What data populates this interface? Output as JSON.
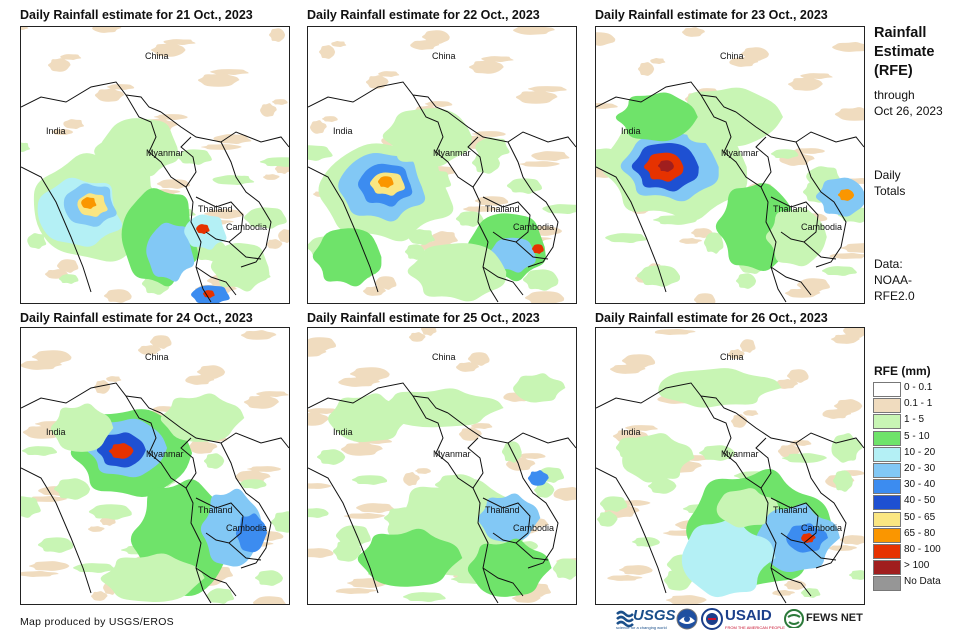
{
  "panels": [
    {
      "title": "Daily Rainfall estimate for 21 Oct., 2023",
      "day": 0
    },
    {
      "title": "Daily Rainfall estimate for 22 Oct., 2023",
      "day": 1
    },
    {
      "title": "Daily Rainfall estimate for 23 Oct., 2023",
      "day": 2
    },
    {
      "title": "Daily Rainfall estimate for 24 Oct., 2023",
      "day": 3
    },
    {
      "title": "Daily Rainfall estimate for 25 Oct., 2023",
      "day": 4
    },
    {
      "title": "Daily Rainfall estimate for 26 Oct., 2023",
      "day": 5
    }
  ],
  "country_labels": {
    "china": "China",
    "india": "India",
    "myanmar": "Myanmar",
    "thailand": "Thailand",
    "cambodia": "Cambodia"
  },
  "side_panel": {
    "title_line1": "Rainfall",
    "title_line2": "Estimate",
    "title_line3": "(RFE)",
    "through_line1": "through",
    "through_line2": "Oct 26, 2023",
    "daily_line1": "Daily",
    "daily_line2": "Totals",
    "data_line1": "Data:",
    "data_line2": "NOAA-",
    "data_line3": "RFE2.0"
  },
  "legend": {
    "title": "RFE (mm)",
    "entries": [
      {
        "label": "0 - 0.1",
        "color": "#ffffff"
      },
      {
        "label": "0.1 - 1",
        "color": "#f0dcbf"
      },
      {
        "label": "1 - 5",
        "color": "#c8f5b4"
      },
      {
        "label": "5 - 10",
        "color": "#6fe36a"
      },
      {
        "label": "10 - 20",
        "color": "#b4f0f5"
      },
      {
        "label": "20 - 30",
        "color": "#82c8f5"
      },
      {
        "label": "30 - 40",
        "color": "#3c8cf0"
      },
      {
        "label": "40 - 50",
        "color": "#1e50d2"
      },
      {
        "label": "50 - 65",
        "color": "#fae682"
      },
      {
        "label": "65 - 80",
        "color": "#fa9600"
      },
      {
        "label": "80 - 100",
        "color": "#e63200"
      },
      {
        "label": "> 100",
        "color": "#a01e1e"
      },
      {
        "label": "No Data",
        "color": "#969696"
      }
    ]
  },
  "footer": {
    "credit": "Map produced by USGS/EROS"
  },
  "logos": {
    "usgs": "USGS",
    "usgs_tagline": "science for a changing world",
    "usaid": "USAID",
    "usaid_tagline": "FROM THE AMERICAN PEOPLE",
    "fewsnet": "FEWS NET"
  }
}
